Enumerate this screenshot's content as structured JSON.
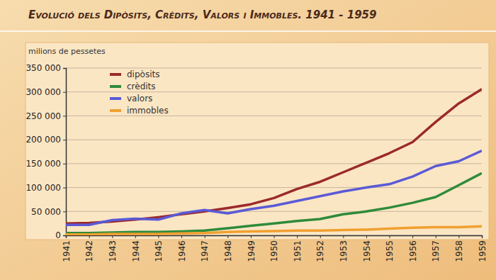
{
  "chart_data": {
    "type": "line",
    "title": "Evolució dels Dipòsits, Crèdits, Valors i Immobles. 1941 - 1959",
    "y_label": "milions de pessetes",
    "x": [
      1941,
      1942,
      1943,
      1944,
      1945,
      1946,
      1947,
      1948,
      1949,
      1950,
      1951,
      1952,
      1953,
      1954,
      1955,
      1956,
      1957,
      1958,
      1959
    ],
    "xlim": [
      1941,
      1959
    ],
    "xticks": [
      1941,
      1942,
      1943,
      1944,
      1945,
      1946,
      1947,
      1948,
      1949,
      1950,
      1951,
      1952,
      1953,
      1954,
      1955,
      1956,
      1957,
      1958,
      1959
    ],
    "ylim": [
      0,
      350000
    ],
    "yticks": [
      0,
      {
        "value": 50000,
        "label": "50 000"
      },
      {
        "value": 100000,
        "label": "100 000"
      },
      {
        "value": 150000,
        "label": "150 000"
      },
      {
        "value": 200000,
        "label": "200 000"
      },
      {
        "value": 250000,
        "label": "250 000"
      },
      {
        "value": 300000,
        "label": "300 000"
      },
      {
        "value": 350000,
        "label": "350 000"
      }
    ],
    "grid": true,
    "legend": "upper left",
    "series": [
      {
        "name": "dipòsits",
        "color": "#9b2a2a",
        "values": [
          25000,
          26000,
          29000,
          33000,
          38000,
          44000,
          50000,
          57000,
          65000,
          78000,
          97000,
          112000,
          132000,
          152000,
          172000,
          195000,
          237000,
          276000,
          306000
        ]
      },
      {
        "name": "crèdits",
        "color": "#2e8b3a",
        "values": [
          5000,
          5000,
          6000,
          7000,
          7000,
          8000,
          10000,
          15000,
          20000,
          25000,
          30000,
          34000,
          44000,
          50000,
          58000,
          68000,
          80000,
          105000,
          130000
        ]
      },
      {
        "name": "valors",
        "color": "#5a5ad6",
        "values": [
          22000,
          22000,
          32000,
          35000,
          33000,
          46000,
          53000,
          46000,
          55000,
          62000,
          72000,
          82000,
          92000,
          100000,
          107000,
          123000,
          145000,
          155000,
          177000
        ]
      },
      {
        "name": "immobles",
        "color": "#f0a030",
        "values": [
          2000,
          2000,
          3000,
          3000,
          3000,
          4000,
          5000,
          7000,
          8000,
          9000,
          10000,
          10000,
          11000,
          12000,
          14000,
          16000,
          17000,
          17000,
          19000
        ]
      }
    ]
  }
}
